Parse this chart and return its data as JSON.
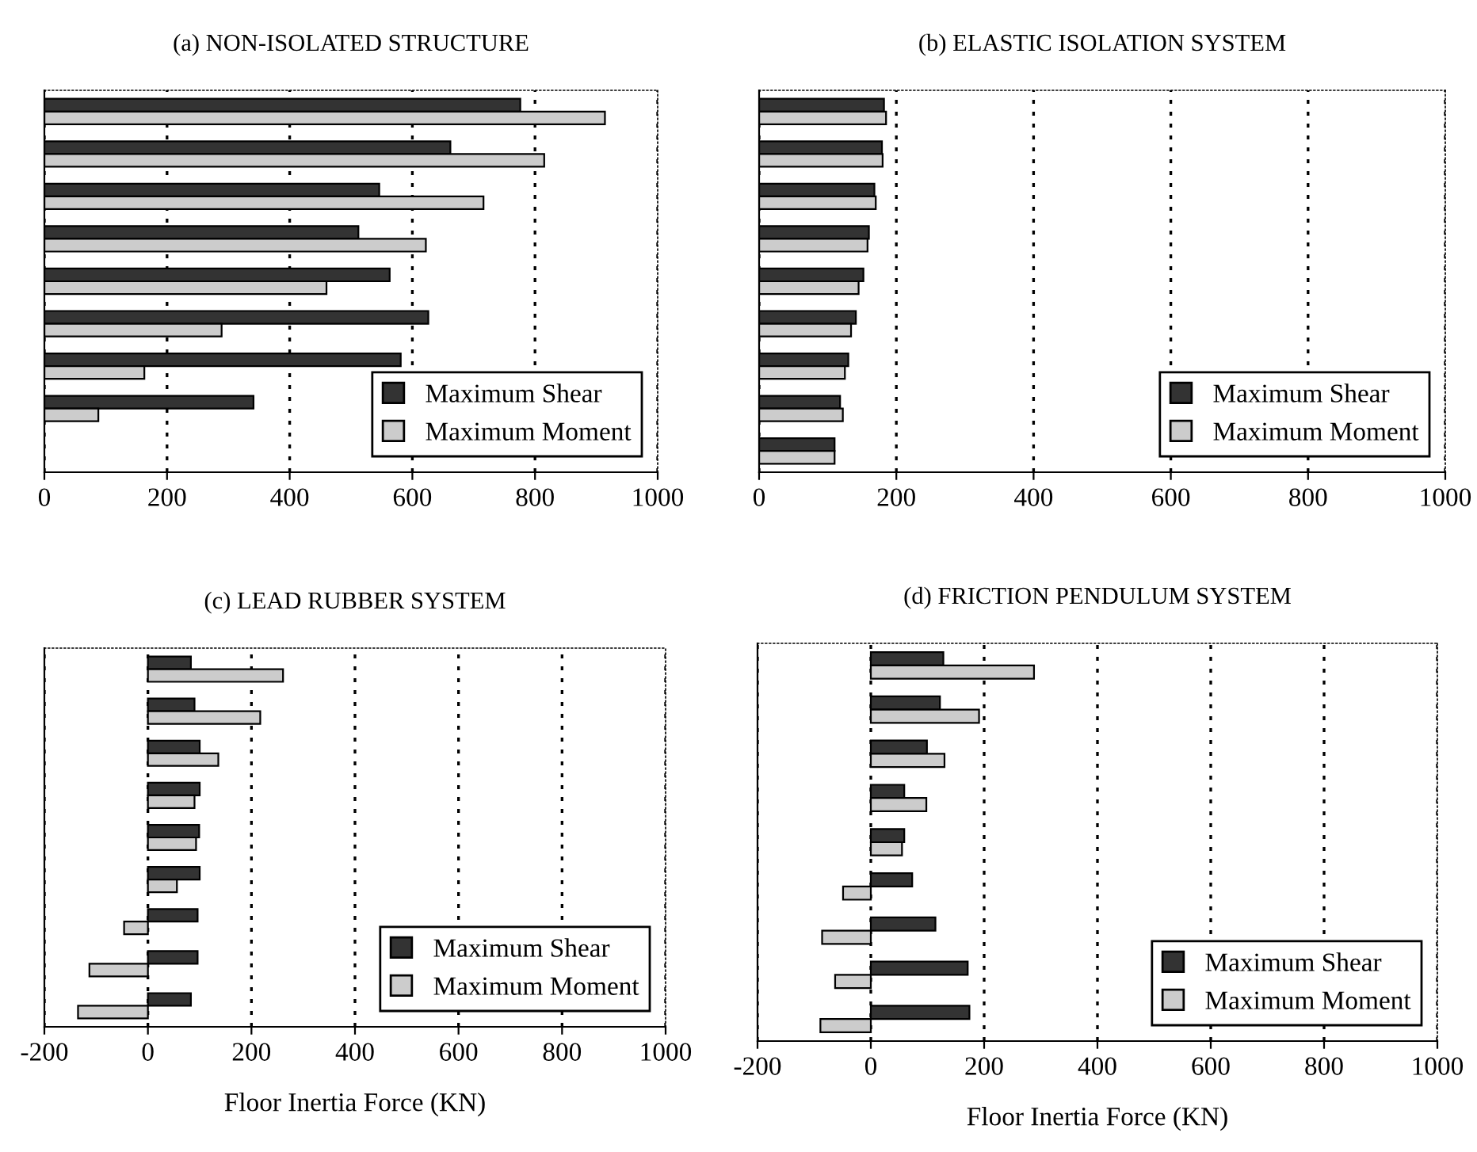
{
  "chart_data": [
    {
      "type": "bar",
      "orientation": "horizontal",
      "title": "(a) NON-ISOLATED STRUCTURE",
      "categories": [
        null,
        null,
        null,
        null,
        null,
        null,
        null,
        null,
        null
      ],
      "xlim": [
        0,
        1000
      ],
      "xticks": [
        0,
        200,
        400,
        600,
        800,
        1000
      ],
      "grid": "x",
      "legend": "bottom right",
      "tick_labels": "x",
      "series": [
        {
          "name": "Maximum Shear",
          "color": "#333333",
          "values": [
            776,
            662,
            546,
            512,
            563,
            626,
            581,
            341,
            null
          ]
        },
        {
          "name": "Maximum Moment",
          "color": "#cccccc",
          "values": [
            914,
            815,
            716,
            622,
            460,
            289,
            163,
            88,
            null
          ]
        }
      ]
    },
    {
      "type": "bar",
      "orientation": "horizontal",
      "title": "(b) ELASTIC ISOLATION SYSTEM",
      "categories": [
        null,
        null,
        null,
        null,
        null,
        null,
        null,
        null,
        null
      ],
      "xlim": [
        0,
        1000
      ],
      "xticks": [
        0,
        200,
        400,
        600,
        800,
        1000
      ],
      "grid": "x",
      "legend": "bottom right",
      "tick_labels": "x",
      "series": [
        {
          "name": "Maximum Shear",
          "color": "#333333",
          "values": [
            182,
            179,
            168,
            160,
            152,
            141,
            130,
            118,
            110
          ]
        },
        {
          "name": "Maximum Moment",
          "color": "#cccccc",
          "values": [
            185,
            180,
            170,
            158,
            145,
            134,
            125,
            122,
            110
          ]
        }
      ]
    },
    {
      "type": "bar",
      "orientation": "horizontal",
      "title": "(c) LEAD RUBBER SYSTEM",
      "xlabel": "Floor Inertia Force (KN)",
      "categories": [
        null,
        null,
        null,
        null,
        null,
        null,
        null,
        null,
        null
      ],
      "xlim": [
        -200,
        1000
      ],
      "xticks": [
        {
          "value": -200,
          "label": "-200"
        },
        0,
        200,
        400,
        600,
        800,
        1000
      ],
      "grid": "x",
      "legend": "bottom right",
      "tick_labels": "x",
      "series": [
        {
          "name": "Maximum Shear",
          "color": "#333333",
          "values": [
            83,
            90,
            100,
            100,
            99,
            100,
            96,
            96,
            83
          ]
        },
        {
          "name": "Maximum Moment",
          "color": "#cccccc",
          "values": [
            261,
            217,
            136,
            90,
            93,
            56,
            -46,
            -113,
            -135
          ]
        }
      ]
    },
    {
      "type": "bar",
      "orientation": "horizontal",
      "title": "(d) FRICTION PENDULUM SYSTEM",
      "xlabel": "Floor Inertia Force (KN)",
      "categories": [
        null,
        null,
        null,
        null,
        null,
        null,
        null,
        null,
        null
      ],
      "xlim": [
        -200,
        1000
      ],
      "xticks": [
        {
          "value": -200,
          "label": "-200"
        },
        0,
        200,
        400,
        600,
        800,
        1000
      ],
      "grid": "x",
      "legend": "bottom right",
      "tick_labels": "x",
      "series": [
        {
          "name": "Maximum Shear",
          "color": "#333333",
          "values": [
            128,
            122,
            99,
            59,
            59,
            73,
            114,
            171,
            174
          ]
        },
        {
          "name": "Maximum Moment",
          "color": "#cccccc",
          "values": [
            288,
            191,
            130,
            98,
            55,
            -49,
            -86,
            -63,
            -89
          ]
        }
      ]
    }
  ]
}
